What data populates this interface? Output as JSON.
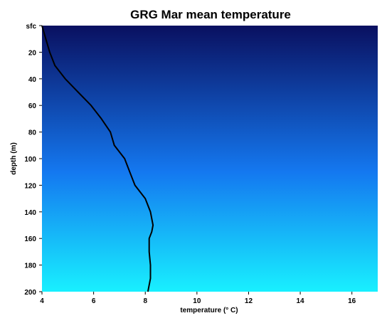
{
  "chart_data": {
    "type": "line",
    "title": "GRG Mar mean temperature",
    "xlabel": "temperature (° C)",
    "ylabel": "depth (m)",
    "xlim": [
      4,
      17
    ],
    "ylim": [
      200,
      0
    ],
    "x_ticks": [
      4,
      6,
      8,
      10,
      12,
      14,
      16
    ],
    "x_tick_labels": [
      "4",
      "6",
      "8",
      "10",
      "12",
      "14",
      "16"
    ],
    "y_ticks": [
      0,
      20,
      40,
      60,
      80,
      100,
      120,
      140,
      160,
      180,
      200
    ],
    "y_tick_labels": [
      "sfc",
      "20",
      "40",
      "60",
      "80",
      "100",
      "120",
      "140",
      "160",
      "180",
      "200"
    ],
    "grid": false,
    "legend": "none",
    "background_gradient": {
      "top_color": "#0a1060",
      "mid_color": "#1478f0",
      "bottom_color": "#18f0ff"
    },
    "line_color": "#000000",
    "series": [
      {
        "x": [
          4.0,
          4.15,
          4.3,
          4.5,
          4.9,
          5.4,
          5.9,
          6.3,
          6.65,
          6.8,
          7.2,
          7.4,
          7.6,
          8.0,
          8.2,
          8.3,
          8.25,
          8.15,
          8.15,
          8.2,
          8.2,
          8.1
        ],
        "y": [
          0,
          10,
          20,
          30,
          40,
          50,
          60,
          70,
          80,
          90,
          100,
          110,
          120,
          130,
          140,
          150,
          155,
          160,
          170,
          180,
          190,
          200
        ]
      }
    ]
  }
}
